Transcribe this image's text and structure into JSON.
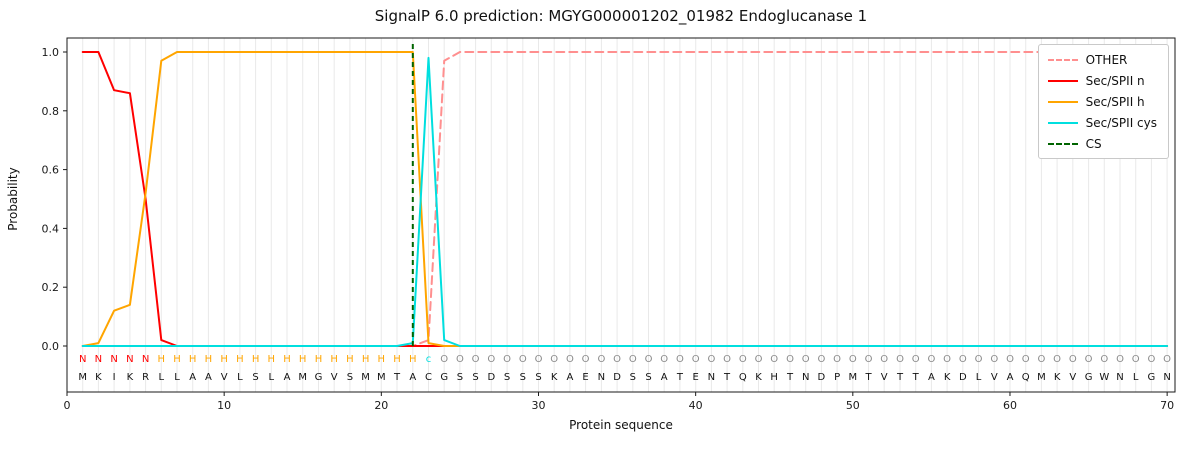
{
  "title": "SignalP 6.0 prediction: MGYG000001202_01982 Endoglucanase 1",
  "chart_data": {
    "type": "line",
    "title": "SignalP 6.0 prediction: MGYG000001202_01982 Endoglucanase 1",
    "xlabel": "Protein sequence",
    "ylabel": "Probability",
    "xlim": [
      0,
      70.5
    ],
    "ylim": [
      -0.16,
      1.05
    ],
    "xticks": [
      "0",
      "10",
      "20",
      "30",
      "40",
      "50",
      "60",
      "70"
    ],
    "yticks": [
      "0.0",
      "0.2",
      "0.4",
      "0.6",
      "0.8",
      "1.0"
    ],
    "grid": "vertical line at every residue position",
    "grid_color": "#e9e9e9",
    "legend_position": "upper right",
    "sequence": "MKIKRLLAAVLSLAMGVSMMTACGSSDSSSKAENDSSATENTQKHTNDPMTVTTAKDLVAQMKVGWNLGN",
    "region_labels": "NNNNNHHHHHHHHHHHHHHHHHcOOOOOOOOOOOOOOOOOOOOOOOOOOOOOOOOOOOOOOOOOOOOOOO",
    "region_colors": {
      "N": "#ff0000",
      "H": "#ffa500",
      "c": "#00dfdf",
      "O": "#8c8c8c"
    },
    "cs_line": {
      "label": "CS",
      "x": 22,
      "color": "#006400",
      "style": "dashed"
    },
    "series": [
      {
        "name": "OTHER",
        "color": "#ff8f8f",
        "style": "dashed",
        "values": [
          0,
          0,
          0,
          0,
          0,
          0,
          0,
          0,
          0,
          0,
          0,
          0,
          0,
          0,
          0,
          0,
          0,
          0,
          0,
          0,
          0,
          0,
          0.02,
          0.97,
          1,
          1,
          1,
          1,
          1,
          1,
          1,
          1,
          1,
          1,
          1,
          1,
          1,
          1,
          1,
          1,
          1,
          1,
          1,
          1,
          1,
          1,
          1,
          1,
          1,
          1,
          1,
          1,
          1,
          1,
          1,
          1,
          1,
          1,
          1,
          1,
          1,
          1,
          1,
          1,
          1,
          1,
          1,
          1,
          1,
          1
        ]
      },
      {
        "name": "Sec/SPII n",
        "color": "#ff0000",
        "style": "solid",
        "values": [
          1,
          1,
          0.87,
          0.86,
          0.5,
          0.02,
          0,
          0,
          0,
          0,
          0,
          0,
          0,
          0,
          0,
          0,
          0,
          0,
          0,
          0,
          0,
          0,
          0,
          0,
          0,
          0,
          0,
          0,
          0,
          0,
          0,
          0,
          0,
          0,
          0,
          0,
          0,
          0,
          0,
          0,
          0,
          0,
          0,
          0,
          0,
          0,
          0,
          0,
          0,
          0,
          0,
          0,
          0,
          0,
          0,
          0,
          0,
          0,
          0,
          0,
          0,
          0,
          0,
          0,
          0,
          0,
          0,
          0,
          0,
          0
        ]
      },
      {
        "name": "Sec/SPII h",
        "color": "#ffa500",
        "style": "solid",
        "values": [
          0,
          0.01,
          0.12,
          0.14,
          0.52,
          0.97,
          1,
          1,
          1,
          1,
          1,
          1,
          1,
          1,
          1,
          1,
          1,
          1,
          1,
          1,
          1,
          1,
          0.01,
          0,
          0,
          0,
          0,
          0,
          0,
          0,
          0,
          0,
          0,
          0,
          0,
          0,
          0,
          0,
          0,
          0,
          0,
          0,
          0,
          0,
          0,
          0,
          0,
          0,
          0,
          0,
          0,
          0,
          0,
          0,
          0,
          0,
          0,
          0,
          0,
          0,
          0,
          0,
          0,
          0,
          0,
          0,
          0,
          0,
          0,
          0
        ]
      },
      {
        "name": "Sec/SPII cys",
        "color": "#00dfdf",
        "style": "solid",
        "values": [
          0,
          0,
          0,
          0,
          0,
          0,
          0,
          0,
          0,
          0,
          0,
          0,
          0,
          0,
          0,
          0,
          0,
          0,
          0,
          0,
          0,
          0.01,
          0.98,
          0.02,
          0,
          0,
          0,
          0,
          0,
          0,
          0,
          0,
          0,
          0,
          0,
          0,
          0,
          0,
          0,
          0,
          0,
          0,
          0,
          0,
          0,
          0,
          0,
          0,
          0,
          0,
          0,
          0,
          0,
          0,
          0,
          0,
          0,
          0,
          0,
          0,
          0,
          0,
          0,
          0,
          0,
          0,
          0,
          0,
          0,
          0
        ]
      }
    ]
  }
}
